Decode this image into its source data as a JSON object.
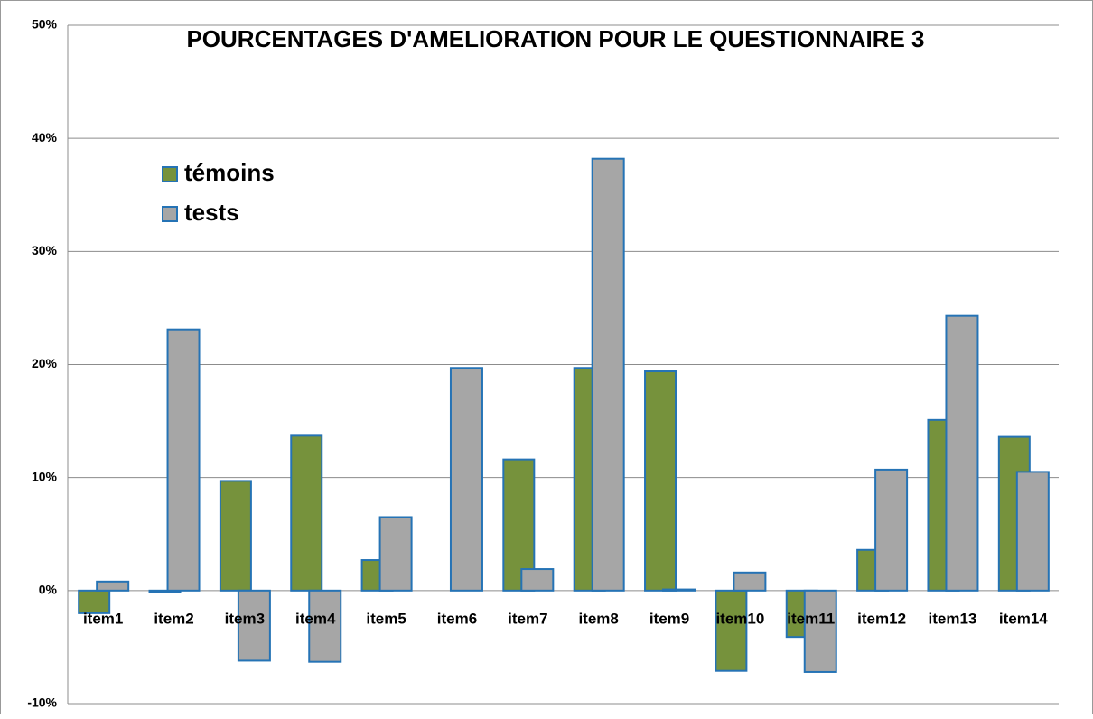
{
  "chart_data": {
    "type": "bar",
    "title": "POURCENTAGES D'AMELIORATION POUR LE QUESTIONNAIRE 3",
    "categories": [
      "item1",
      "item2",
      "item3",
      "item4",
      "item5",
      "item6",
      "item7",
      "item8",
      "item9",
      "item10",
      "item11",
      "item12",
      "item13",
      "item14"
    ],
    "series": [
      {
        "name": "témoins",
        "color": "#76923c",
        "values": [
          -2.0,
          -0.1,
          9.7,
          13.7,
          2.7,
          0,
          11.6,
          19.7,
          19.4,
          -7.1,
          -4.1,
          3.6,
          15.1,
          13.6
        ]
      },
      {
        "name": "tests",
        "color": "#a6a6a6",
        "values": [
          0.8,
          23.1,
          -6.2,
          -6.3,
          6.5,
          19.7,
          1.9,
          38.2,
          0.1,
          1.6,
          -7.2,
          10.7,
          24.3,
          10.5
        ]
      }
    ],
    "ylim": [
      -10,
      50
    ],
    "yticks": [
      {
        "value": -10,
        "label": "-10%"
      },
      {
        "value": 0,
        "label": "0%"
      },
      {
        "value": 10,
        "label": "10%"
      },
      {
        "value": 20,
        "label": "20%"
      },
      {
        "value": 30,
        "label": "30%"
      },
      {
        "value": 40,
        "label": "40%"
      },
      {
        "value": 50,
        "label": "50%"
      }
    ],
    "grid": true,
    "legend": "upper left"
  }
}
